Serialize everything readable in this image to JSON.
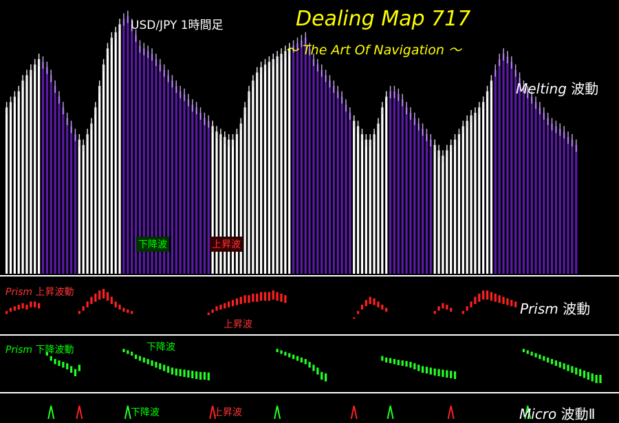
{
  "header": {
    "title": "Dealing Map 717",
    "subtitle": "～ The Art Of Navigation ～",
    "pair": "USD/JPY 1時間足"
  },
  "labels": {
    "melting_italic": "Melting",
    "melting_rest": " 波動",
    "prism_italic": "Prism",
    "prism_rest": " 波動",
    "micro_italic": "Micro",
    "micro_rest": " 波動Ⅱ",
    "prism_up_italic": "Prism",
    "prism_up_rest": " 上昇波動",
    "prism_down_italic": "Prism",
    "prism_down_rest": " 下降波動",
    "main_down": "下降波",
    "main_up": "上昇波",
    "prism_up_tag": "上昇波",
    "prism_down_tag": "下降波",
    "micro_down": "下降波",
    "micro_up": "上昇波"
  },
  "colors": {
    "background": "#000000",
    "up_bar": "#ffffff",
    "down_bar": "#5a1aa8",
    "prism_up": "#ff2020",
    "prism_down": "#22ff22",
    "title": "#ffff00"
  },
  "chart_data": {
    "type": "bar",
    "melting_price": [
      0.62,
      0.64,
      0.66,
      0.68,
      0.72,
      0.74,
      0.76,
      0.78,
      0.8,
      0.79,
      0.77,
      0.74,
      0.7,
      0.66,
      0.62,
      0.58,
      0.55,
      0.52,
      0.5,
      0.48,
      0.52,
      0.56,
      0.62,
      0.7,
      0.78,
      0.84,
      0.88,
      0.9,
      0.93,
      0.95,
      0.96,
      0.93,
      0.89,
      0.85,
      0.84,
      0.83,
      0.82,
      0.8,
      0.78,
      0.76,
      0.74,
      0.72,
      0.7,
      0.68,
      0.67,
      0.65,
      0.63,
      0.62,
      0.6,
      0.58,
      0.57,
      0.55,
      0.53,
      0.52,
      0.51,
      0.5,
      0.5,
      0.52,
      0.56,
      0.62,
      0.68,
      0.72,
      0.75,
      0.77,
      0.78,
      0.79,
      0.8,
      0.81,
      0.82,
      0.83,
      0.84,
      0.85,
      0.86,
      0.87,
      0.88,
      0.84,
      0.8,
      0.78,
      0.76,
      0.74,
      0.72,
      0.7,
      0.68,
      0.66,
      0.63,
      0.6,
      0.57,
      0.55,
      0.52,
      0.5,
      0.5,
      0.52,
      0.56,
      0.62,
      0.66,
      0.68,
      0.68,
      0.67,
      0.65,
      0.62,
      0.6,
      0.58,
      0.56,
      0.54,
      0.52,
      0.5,
      0.48,
      0.46,
      0.44,
      0.46,
      0.48,
      0.5,
      0.52,
      0.55,
      0.57,
      0.59,
      0.6,
      0.62,
      0.64,
      0.68,
      0.72,
      0.76,
      0.8,
      0.82,
      0.81,
      0.79,
      0.76,
      0.73,
      0.7,
      0.68,
      0.66,
      0.64,
      0.62,
      0.6,
      0.58,
      0.56,
      0.55,
      0.54,
      0.53,
      0.51,
      0.5,
      0.48
    ],
    "melting_dir": [
      "u",
      "u",
      "u",
      "u",
      "u",
      "u",
      "u",
      "u",
      "u",
      "d",
      "d",
      "d",
      "d",
      "d",
      "d",
      "d",
      "d",
      "d",
      "u",
      "u",
      "u",
      "u",
      "u",
      "u",
      "u",
      "u",
      "u",
      "u",
      "u",
      "d",
      "d",
      "d",
      "d",
      "d",
      "d",
      "d",
      "d",
      "d",
      "d",
      "d",
      "d",
      "d",
      "d",
      "d",
      "d",
      "d",
      "d",
      "d",
      "d",
      "d",
      "d",
      "u",
      "u",
      "u",
      "u",
      "u",
      "u",
      "u",
      "u",
      "u",
      "u",
      "u",
      "u",
      "u",
      "u",
      "u",
      "u",
      "u",
      "u",
      "u",
      "u",
      "d",
      "d",
      "d",
      "d",
      "d",
      "d",
      "d",
      "d",
      "d",
      "d",
      "d",
      "d",
      "d",
      "d",
      "d",
      "u",
      "u",
      "u",
      "u",
      "u",
      "u",
      "u",
      "u",
      "u",
      "d",
      "d",
      "d",
      "d",
      "d",
      "d",
      "d",
      "d",
      "d",
      "d",
      "d",
      "u",
      "u",
      "u",
      "u",
      "u",
      "u",
      "u",
      "u",
      "u",
      "u",
      "u",
      "u",
      "u",
      "u",
      "u",
      "d",
      "d",
      "d",
      "d",
      "d",
      "d",
      "d",
      "d",
      "d",
      "d",
      "d",
      "d",
      "d",
      "d",
      "d",
      "d",
      "d",
      "d",
      "d",
      "d"
    ],
    "prism_up": [
      {
        "start": 0,
        "values": [
          0.3,
          0.4,
          0.45,
          0.5,
          0.55,
          0.5,
          0.6,
          0.6,
          0.55
        ]
      },
      {
        "start": 18,
        "values": [
          0.3,
          0.45,
          0.6,
          0.75,
          0.85,
          0.95,
          1.0,
          0.9,
          0.75,
          0.6,
          0.5,
          0.4,
          0.35,
          0.3
        ]
      },
      {
        "start": 50,
        "values": [
          0.25,
          0.35,
          0.45,
          0.5,
          0.55,
          0.6,
          0.65,
          0.7,
          0.75,
          0.8,
          0.8,
          0.85,
          0.85,
          0.9,
          0.9,
          0.9,
          0.95,
          0.9,
          0.85,
          0.8
        ]
      },
      {
        "start": 86,
        "values": [
          0.1,
          0.3,
          0.5,
          0.65,
          0.75,
          0.7,
          0.6,
          0.5,
          0.4
        ]
      },
      {
        "start": 106,
        "values": [
          0.3,
          0.45,
          0.55,
          0.5,
          0.4
        ]
      },
      {
        "start": 113,
        "values": [
          0.3,
          0.45,
          0.6,
          0.75,
          0.85,
          0.95,
          0.95,
          0.9,
          0.85,
          0.8,
          0.75,
          0.7,
          0.65,
          0.6
        ]
      }
    ],
    "prism_down": [
      {
        "start": 10,
        "values": [
          0.2,
          0.35,
          0.45,
          0.5,
          0.55,
          0.6,
          0.7,
          0.8,
          0.65
        ]
      },
      {
        "start": 29,
        "values": [
          0.1,
          0.15,
          0.2,
          0.3,
          0.35,
          0.4,
          0.45,
          0.5,
          0.55,
          0.6,
          0.65,
          0.7,
          0.75,
          0.78,
          0.8,
          0.82,
          0.84,
          0.86,
          0.88,
          0.9,
          0.9,
          0.92
        ]
      },
      {
        "start": 67,
        "values": [
          0.1,
          0.15,
          0.2,
          0.25,
          0.3,
          0.35,
          0.4,
          0.45,
          0.55,
          0.65,
          0.75,
          0.9,
          0.95
        ]
      },
      {
        "start": 93,
        "values": [
          0.35,
          0.4,
          0.42,
          0.45,
          0.48,
          0.5,
          0.52,
          0.55,
          0.6,
          0.65,
          0.7,
          0.72,
          0.75,
          0.78,
          0.8,
          0.82,
          0.84,
          0.86,
          0.88
        ]
      },
      {
        "start": 128,
        "values": [
          0.1,
          0.15,
          0.2,
          0.25,
          0.3,
          0.35,
          0.4,
          0.45,
          0.5,
          0.55,
          0.6,
          0.65,
          0.7,
          0.75,
          0.8,
          0.85,
          0.9,
          0.95,
          1.0,
          1.0
        ]
      }
    ],
    "micro_signals": [
      {
        "bar": 11,
        "dir": "up"
      },
      {
        "bar": 18,
        "dir": "down"
      },
      {
        "bar": 30,
        "dir": "up"
      },
      {
        "bar": 51,
        "dir": "down"
      },
      {
        "bar": 67,
        "dir": "up"
      },
      {
        "bar": 86,
        "dir": "down"
      },
      {
        "bar": 95,
        "dir": "up"
      },
      {
        "bar": 110,
        "dir": "down"
      },
      {
        "bar": 129,
        "dir": "up"
      }
    ]
  }
}
